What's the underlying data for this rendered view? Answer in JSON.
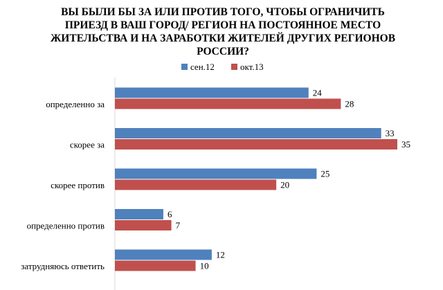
{
  "chart_data": {
    "type": "bar",
    "orientation": "horizontal",
    "title": [
      "ВЫ БЫЛИ БЫ ЗА ИЛИ ПРОТИВ ТОГО, ЧТОБЫ ОГРАНИЧИТЬ",
      "ПРИЕЗД В ВАШ ГОРОД/ РЕГИОН НА ПОСТОЯННОЕ МЕСТО",
      "ЖИТЕЛЬСТВА И НА ЗАРАБОТКИ ЖИТЕЛЕЙ ДРУГИХ РЕГИОНОВ",
      "РОССИИ?"
    ],
    "categories": [
      "определенно за",
      "скорее за",
      "скорее против",
      "определенно против",
      "затрудняюсь ответить"
    ],
    "series": [
      {
        "name": "сен.12",
        "color": "#4F81BD",
        "values": [
          24,
          33,
          25,
          6,
          12
        ]
      },
      {
        "name": "окт.13",
        "color": "#C0504D",
        "values": [
          28,
          35,
          20,
          7,
          10
        ]
      }
    ],
    "xlim": [
      0,
      35
    ],
    "legend": "top-center",
    "grid": false
  }
}
